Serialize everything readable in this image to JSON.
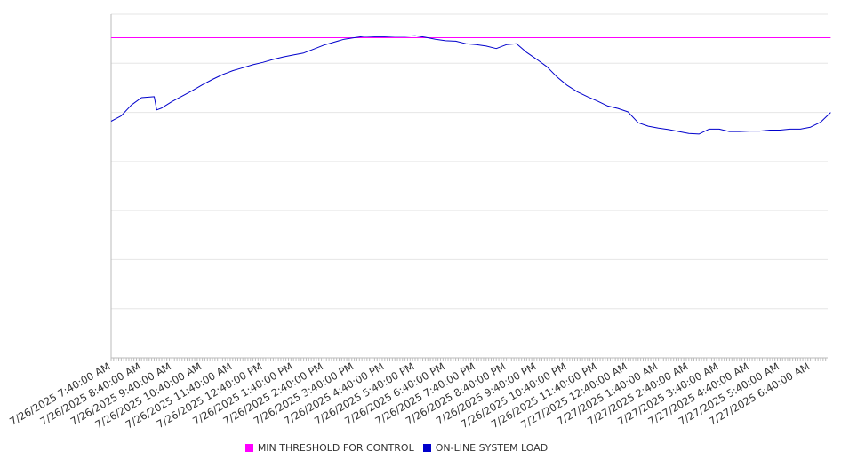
{
  "chart_data": {
    "type": "line",
    "title": "",
    "xlabel": "",
    "ylabel": "",
    "x_tick_labels": [
      "7/26/2025 7:40:00 AM",
      "7/26/2025 8:40:00 AM",
      "7/26/2025 9:40:00 AM",
      "7/26/2025 10:40:00 AM",
      "7/26/2025 11:40:00 AM",
      "7/26/2025 12:40:00 PM",
      "7/26/2025 1:40:00 PM",
      "7/26/2025 2:40:00 PM",
      "7/26/2025 3:40:00 PM",
      "7/26/2025 4:40:00 PM",
      "7/26/2025 5:40:00 PM",
      "7/26/2025 6:40:00 PM",
      "7/26/2025 7:40:00 PM",
      "7/26/2025 8:40:00 PM",
      "7/26/2025 9:40:00 PM",
      "7/26/2025 10:40:00 PM",
      "7/26/2025 11:40:00 PM",
      "7/27/2025 12:40:00 AM",
      "7/27/2025 1:40:00 AM",
      "7/27/2025 2:40:00 AM",
      "7/27/2025 3:40:00 AM",
      "7/27/2025 4:40:00 AM",
      "7/27/2025 5:40:00 AM",
      "7/27/2025 6:40:00 AM"
    ],
    "y_gridlines": 7,
    "grid": true,
    "legend_position": "bottom",
    "series": [
      {
        "name": "MIN THRESHOLD FOR CONTROL",
        "color": "#ff00ff",
        "x": [
          "7/26/2025 7:40:00 AM",
          "7/27/2025 7:20:00 AM"
        ],
        "values": [
          6.52,
          6.52
        ]
      },
      {
        "name": "ON-LINE SYSTEM LOAD",
        "color": "#0000cc",
        "x": [
          "7/26/2025 7:40:00 AM",
          "7/26/2025 8:00:00 AM",
          "7/26/2025 8:20:00 AM",
          "7/26/2025 8:40:00 AM",
          "7/26/2025 9:05:00 AM",
          "7/26/2025 9:10:00 AM",
          "7/26/2025 9:20:00 AM",
          "7/26/2025 9:40:00 AM",
          "7/26/2025 10:00:00 AM",
          "7/26/2025 10:20:00 AM",
          "7/26/2025 10:40:00 AM",
          "7/26/2025 11:00:00 AM",
          "7/26/2025 11:20:00 AM",
          "7/26/2025 11:40:00 AM",
          "7/26/2025 12:00:00 PM",
          "7/26/2025 12:20:00 PM",
          "7/26/2025 12:40:00 PM",
          "7/26/2025 1:00:00 PM",
          "7/26/2025 1:20:00 PM",
          "7/26/2025 1:40:00 PM",
          "7/26/2025 2:00:00 PM",
          "7/26/2025 2:20:00 PM",
          "7/26/2025 2:40:00 PM",
          "7/26/2025 3:00:00 PM",
          "7/26/2025 3:20:00 PM",
          "7/26/2025 3:40:00 PM",
          "7/26/2025 4:00:00 PM",
          "7/26/2025 4:20:00 PM",
          "7/26/2025 4:40:00 PM",
          "7/26/2025 5:00:00 PM",
          "7/26/2025 5:20:00 PM",
          "7/26/2025 5:40:00 PM",
          "7/26/2025 6:00:00 PM",
          "7/26/2025 6:20:00 PM",
          "7/26/2025 6:40:00 PM",
          "7/26/2025 7:00:00 PM",
          "7/26/2025 7:20:00 PM",
          "7/26/2025 7:40:00 PM",
          "7/26/2025 8:00:00 PM",
          "7/26/2025 8:20:00 PM",
          "7/26/2025 8:40:00 PM",
          "7/26/2025 9:00:00 PM",
          "7/26/2025 9:20:00 PM",
          "7/26/2025 9:40:00 PM",
          "7/26/2025 10:00:00 PM",
          "7/26/2025 10:20:00 PM",
          "7/26/2025 10:40:00 PM",
          "7/26/2025 11:00:00 PM",
          "7/26/2025 11:20:00 PM",
          "7/26/2025 11:40:00 PM",
          "7/27/2025 12:00:00 AM",
          "7/27/2025 12:20:00 AM",
          "7/27/2025 12:40:00 AM",
          "7/27/2025 1:00:00 AM",
          "7/27/2025 1:20:00 AM",
          "7/27/2025 1:40:00 AM",
          "7/27/2025 2:00:00 AM",
          "7/27/2025 2:20:00 AM",
          "7/27/2025 2:40:00 AM",
          "7/27/2025 3:00:00 AM",
          "7/27/2025 3:20:00 AM",
          "7/27/2025 3:40:00 AM",
          "7/27/2025 4:00:00 AM",
          "7/27/2025 4:20:00 AM",
          "7/27/2025 4:40:00 AM",
          "7/27/2025 5:00:00 AM",
          "7/27/2025 5:20:00 AM",
          "7/27/2025 5:40:00 AM",
          "7/27/2025 6:00:00 AM",
          "7/27/2025 6:20:00 AM",
          "7/27/2025 6:40:00 AM",
          "7/27/2025 7:00:00 AM",
          "7/27/2025 7:20:00 AM"
        ],
        "values": [
          4.82,
          4.93,
          5.15,
          5.3,
          5.32,
          5.05,
          5.09,
          5.22,
          5.33,
          5.44,
          5.56,
          5.67,
          5.77,
          5.85,
          5.91,
          5.97,
          6.02,
          6.08,
          6.13,
          6.17,
          6.21,
          6.29,
          6.37,
          6.43,
          6.49,
          6.52,
          6.55,
          6.54,
          6.54,
          6.55,
          6.55,
          6.56,
          6.53,
          6.49,
          6.46,
          6.45,
          6.4,
          6.38,
          6.35,
          6.3,
          6.38,
          6.4,
          6.22,
          6.08,
          5.93,
          5.72,
          5.55,
          5.42,
          5.32,
          5.23,
          5.13,
          5.08,
          5.01,
          4.79,
          4.72,
          4.68,
          4.65,
          4.61,
          4.57,
          4.56,
          4.66,
          4.66,
          4.61,
          4.61,
          4.62,
          4.62,
          4.64,
          4.64,
          4.66,
          4.66,
          4.7,
          4.8,
          5.0
        ]
      }
    ]
  }
}
